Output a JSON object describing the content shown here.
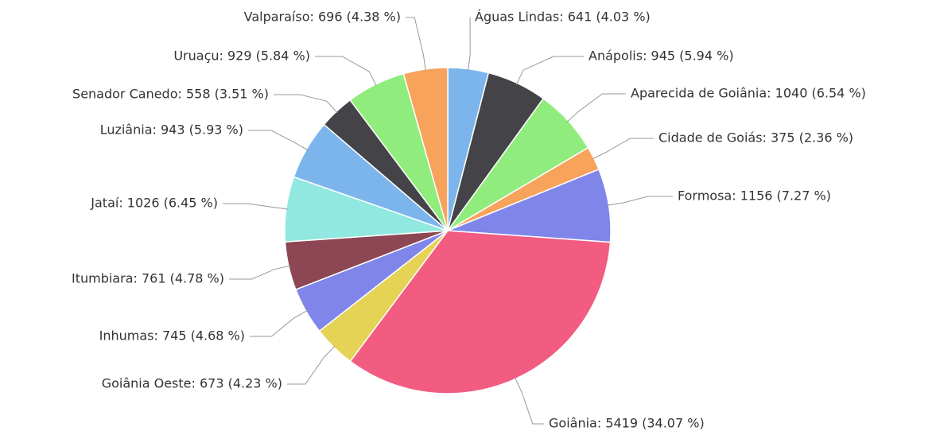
{
  "chart_data": {
    "type": "pie",
    "labels": [
      "Águas Lindas: 641 (4.03 %)",
      "Anápolis: 945 (5.94 %)",
      "Aparecida de Goiânia: 1040 (6.54 %)",
      "Cidade de Goiás: 375 (2.36 %)",
      "Formosa: 1156 (7.27 %)",
      "Goiânia: 5419 (34.07 %)",
      "Goiânia Oeste: 673 (4.23 %)",
      "Inhumas: 745 (4.68 %)",
      "Itumbiara: 761 (4.78 %)",
      "Jataí: 1026 (6.45 %)",
      "Luziânia: 943 (5.93 %)",
      "Senador Canedo: 558 (3.51 %)",
      "Uruaçu: 929 (5.84 %)",
      "Valparaíso: 696 (4.38 %)"
    ],
    "values": [
      641,
      945,
      1040,
      375,
      1156,
      5419,
      673,
      745,
      761,
      1026,
      943,
      558,
      929,
      696
    ],
    "colors": [
      "#7cb5ec",
      "#434348",
      "#90ed7d",
      "#f7a35c",
      "#8085e9",
      "#f15c80",
      "#e4d354",
      "#8085e9",
      "#8d4653",
      "#91e8e1",
      "#7cb5ec",
      "#434348",
      "#90ed7d",
      "#f7a35c"
    ]
  }
}
